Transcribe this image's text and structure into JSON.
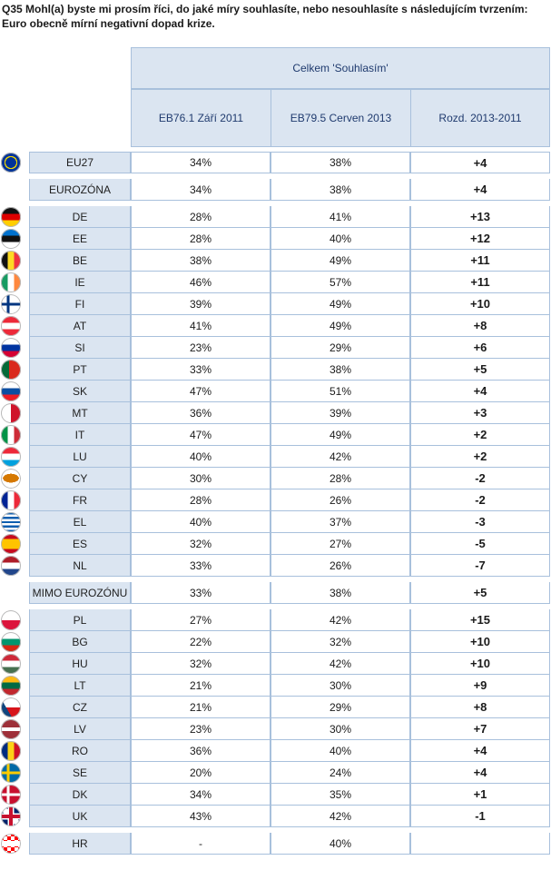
{
  "question": "Q35 Mohl(a) byste mi prosím říci, do jaké míry souhlasíte, nebo nesouhlasíte s následujícím tvrzením: Euro obecně mírní negativní dopad krize.",
  "header": {
    "group": "Celkem 'Souhlasím'",
    "col_a": "EB76.1 Září 2011",
    "col_b": "EB79.5 Cerven 2013",
    "col_diff": "Rozd. 2013-2011"
  },
  "groups": [
    {
      "rows": [
        {
          "code": "EU27",
          "flag": "eu",
          "a": "34%",
          "b": "38%",
          "d": "+4"
        }
      ]
    },
    {
      "rows": [
        {
          "code": "EUROZÓNA",
          "flag": "",
          "a": "34%",
          "b": "38%",
          "d": "+4"
        }
      ]
    },
    {
      "rows": [
        {
          "code": "DE",
          "flag": "de",
          "a": "28%",
          "b": "41%",
          "d": "+13"
        },
        {
          "code": "EE",
          "flag": "ee",
          "a": "28%",
          "b": "40%",
          "d": "+12"
        },
        {
          "code": "BE",
          "flag": "be",
          "a": "38%",
          "b": "49%",
          "d": "+11"
        },
        {
          "code": "IE",
          "flag": "ie",
          "a": "46%",
          "b": "57%",
          "d": "+11"
        },
        {
          "code": "FI",
          "flag": "fi",
          "a": "39%",
          "b": "49%",
          "d": "+10"
        },
        {
          "code": "AT",
          "flag": "at",
          "a": "41%",
          "b": "49%",
          "d": "+8"
        },
        {
          "code": "SI",
          "flag": "si",
          "a": "23%",
          "b": "29%",
          "d": "+6"
        },
        {
          "code": "PT",
          "flag": "pt",
          "a": "33%",
          "b": "38%",
          "d": "+5"
        },
        {
          "code": "SK",
          "flag": "sk",
          "a": "47%",
          "b": "51%",
          "d": "+4"
        },
        {
          "code": "MT",
          "flag": "mt",
          "a": "36%",
          "b": "39%",
          "d": "+3"
        },
        {
          "code": "IT",
          "flag": "it",
          "a": "47%",
          "b": "49%",
          "d": "+2"
        },
        {
          "code": "LU",
          "flag": "lu",
          "a": "40%",
          "b": "42%",
          "d": "+2"
        },
        {
          "code": "CY",
          "flag": "cy",
          "a": "30%",
          "b": "28%",
          "d": "-2"
        },
        {
          "code": "FR",
          "flag": "fr",
          "a": "28%",
          "b": "26%",
          "d": "-2"
        },
        {
          "code": "EL",
          "flag": "el",
          "a": "40%",
          "b": "37%",
          "d": "-3"
        },
        {
          "code": "ES",
          "flag": "es",
          "a": "32%",
          "b": "27%",
          "d": "-5"
        },
        {
          "code": "NL",
          "flag": "nl",
          "a": "33%",
          "b": "26%",
          "d": "-7"
        }
      ]
    },
    {
      "rows": [
        {
          "code": "MIMO EUROZÓNU",
          "flag": "",
          "a": "33%",
          "b": "38%",
          "d": "+5"
        }
      ]
    },
    {
      "rows": [
        {
          "code": "PL",
          "flag": "pl",
          "a": "27%",
          "b": "42%",
          "d": "+15"
        },
        {
          "code": "BG",
          "flag": "bg",
          "a": "22%",
          "b": "32%",
          "d": "+10"
        },
        {
          "code": "HU",
          "flag": "hu",
          "a": "32%",
          "b": "42%",
          "d": "+10"
        },
        {
          "code": "LT",
          "flag": "lt",
          "a": "21%",
          "b": "30%",
          "d": "+9"
        },
        {
          "code": "CZ",
          "flag": "cz",
          "a": "21%",
          "b": "29%",
          "d": "+8"
        },
        {
          "code": "LV",
          "flag": "lv",
          "a": "23%",
          "b": "30%",
          "d": "+7"
        },
        {
          "code": "RO",
          "flag": "ro",
          "a": "36%",
          "b": "40%",
          "d": "+4"
        },
        {
          "code": "SE",
          "flag": "se",
          "a": "20%",
          "b": "24%",
          "d": "+4"
        },
        {
          "code": "DK",
          "flag": "dk",
          "a": "34%",
          "b": "35%",
          "d": "+1"
        },
        {
          "code": "UK",
          "flag": "uk",
          "a": "43%",
          "b": "42%",
          "d": "-1"
        }
      ]
    },
    {
      "rows": [
        {
          "code": "HR",
          "flag": "hr",
          "a": "-",
          "b": "40%",
          "d": ""
        }
      ]
    }
  ]
}
